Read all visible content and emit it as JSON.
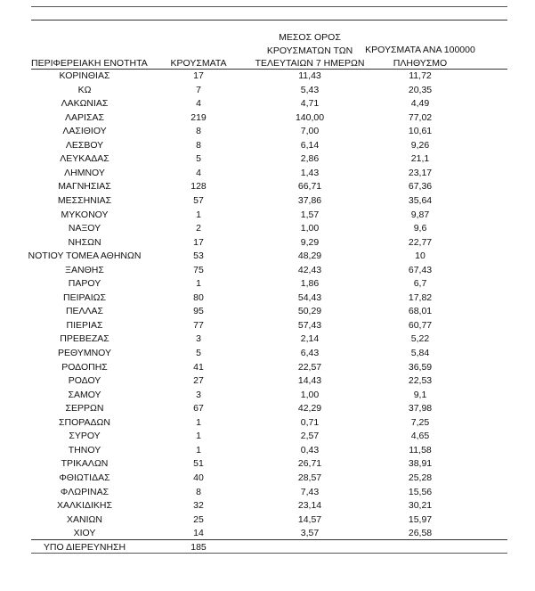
{
  "table": {
    "headers": [
      "ΠΕΡΙΦΕΡΕΙΑΚΗ ΕΝΟΤΗΤΑ",
      "ΚΡΟΥΣΜΑΤΑ",
      "ΜΕΣΟΣ ΟΡΟΣ ΚΡΟΥΣΜΑΤΩΝ ΤΩΝ ΤΕΛΕΥΤΑΙΩΝ 7 ΗΜΕΡΩΝ",
      "ΚΡΟΥΣΜΑΤΑ ΑΝΑ 100000 ΠΛΗΘΥΣΜΟ"
    ],
    "header_lines": {
      "col3": [
        "ΜΕΣΟΣ ΟΡΟΣ",
        "ΚΡΟΥΣΜΑΤΩΝ ΤΩΝ",
        "ΤΕΛΕΥΤΑΙΩΝ 7 ΗΜΕΡΩΝ"
      ],
      "col4": [
        "ΚΡΟΥΣΜΑΤΑ ΑΝΑ 100000",
        "ΠΛΗΘΥΣΜΟ"
      ]
    },
    "rows": [
      [
        "ΚΟΡΙΝΘΙΑΣ",
        "17",
        "11,43",
        "11,72"
      ],
      [
        "ΚΩ",
        "7",
        "5,43",
        "20,35"
      ],
      [
        "ΛΑΚΩΝΙΑΣ",
        "4",
        "4,71",
        "4,49"
      ],
      [
        "ΛΑΡΙΣΑΣ",
        "219",
        "140,00",
        "77,02"
      ],
      [
        "ΛΑΣΙΘΙΟΥ",
        "8",
        "7,00",
        "10,61"
      ],
      [
        "ΛΕΣΒΟΥ",
        "8",
        "6,14",
        "9,26"
      ],
      [
        "ΛΕΥΚΑΔΑΣ",
        "5",
        "2,86",
        "21,1"
      ],
      [
        "ΛΗΜΝΟΥ",
        "4",
        "1,43",
        "23,17"
      ],
      [
        "ΜΑΓΝΗΣΙΑΣ",
        "128",
        "66,71",
        "67,36"
      ],
      [
        "ΜΕΣΣΗΝΙΑΣ",
        "57",
        "37,86",
        "35,64"
      ],
      [
        "ΜΥΚΟΝΟΥ",
        "1",
        "1,57",
        "9,87"
      ],
      [
        "ΝΑΞΟΥ",
        "2",
        "1,00",
        "9,6"
      ],
      [
        "ΝΗΣΩΝ",
        "17",
        "9,29",
        "22,77"
      ],
      [
        "ΝΟΤΙΟΥ ΤΟΜΕΑ ΑΘΗΝΩΝ",
        "53",
        "48,29",
        "10"
      ],
      [
        "ΞΑΝΘΗΣ",
        "75",
        "42,43",
        "67,43"
      ],
      [
        "ΠΑΡΟΥ",
        "1",
        "1,86",
        "6,7"
      ],
      [
        "ΠΕΙΡΑΙΩΣ",
        "80",
        "54,43",
        "17,82"
      ],
      [
        "ΠΕΛΛΑΣ",
        "95",
        "50,29",
        "68,01"
      ],
      [
        "ΠΙΕΡΙΑΣ",
        "77",
        "57,43",
        "60,77"
      ],
      [
        "ΠΡΕΒΕΖΑΣ",
        "3",
        "2,14",
        "5,22"
      ],
      [
        "ΡΕΘΥΜΝΟΥ",
        "5",
        "6,43",
        "5,84"
      ],
      [
        "ΡΟΔΟΠΗΣ",
        "41",
        "22,57",
        "36,59"
      ],
      [
        "ΡΟΔΟΥ",
        "27",
        "14,43",
        "22,53"
      ],
      [
        "ΣΑΜΟΥ",
        "3",
        "1,00",
        "9,1"
      ],
      [
        "ΣΕΡΡΩΝ",
        "67",
        "42,29",
        "37,98"
      ],
      [
        "ΣΠΟΡΑΔΩΝ",
        "1",
        "0,71",
        "7,25"
      ],
      [
        "ΣΥΡΟΥ",
        "1",
        "2,57",
        "4,65"
      ],
      [
        "ΤΗΝΟΥ",
        "1",
        "0,43",
        "11,58"
      ],
      [
        "ΤΡΙΚΑΛΩΝ",
        "51",
        "26,71",
        "38,91"
      ],
      [
        "ΦΘΙΩΤΙΔΑΣ",
        "40",
        "28,57",
        "25,28"
      ],
      [
        "ΦΛΩΡΙΝΑΣ",
        "8",
        "7,43",
        "15,56"
      ],
      [
        "ΧΑΛΚΙΔΙΚΗΣ",
        "32",
        "23,14",
        "30,21"
      ],
      [
        "ΧΑΝΙΩΝ",
        "25",
        "14,57",
        "15,97"
      ],
      [
        "ΧΙΟΥ",
        "14",
        "3,57",
        "26,58"
      ],
      [
        "ΥΠΟ ΔΙΕΡΕΥΝΗΣΗ",
        "185",
        "",
        ""
      ]
    ]
  }
}
